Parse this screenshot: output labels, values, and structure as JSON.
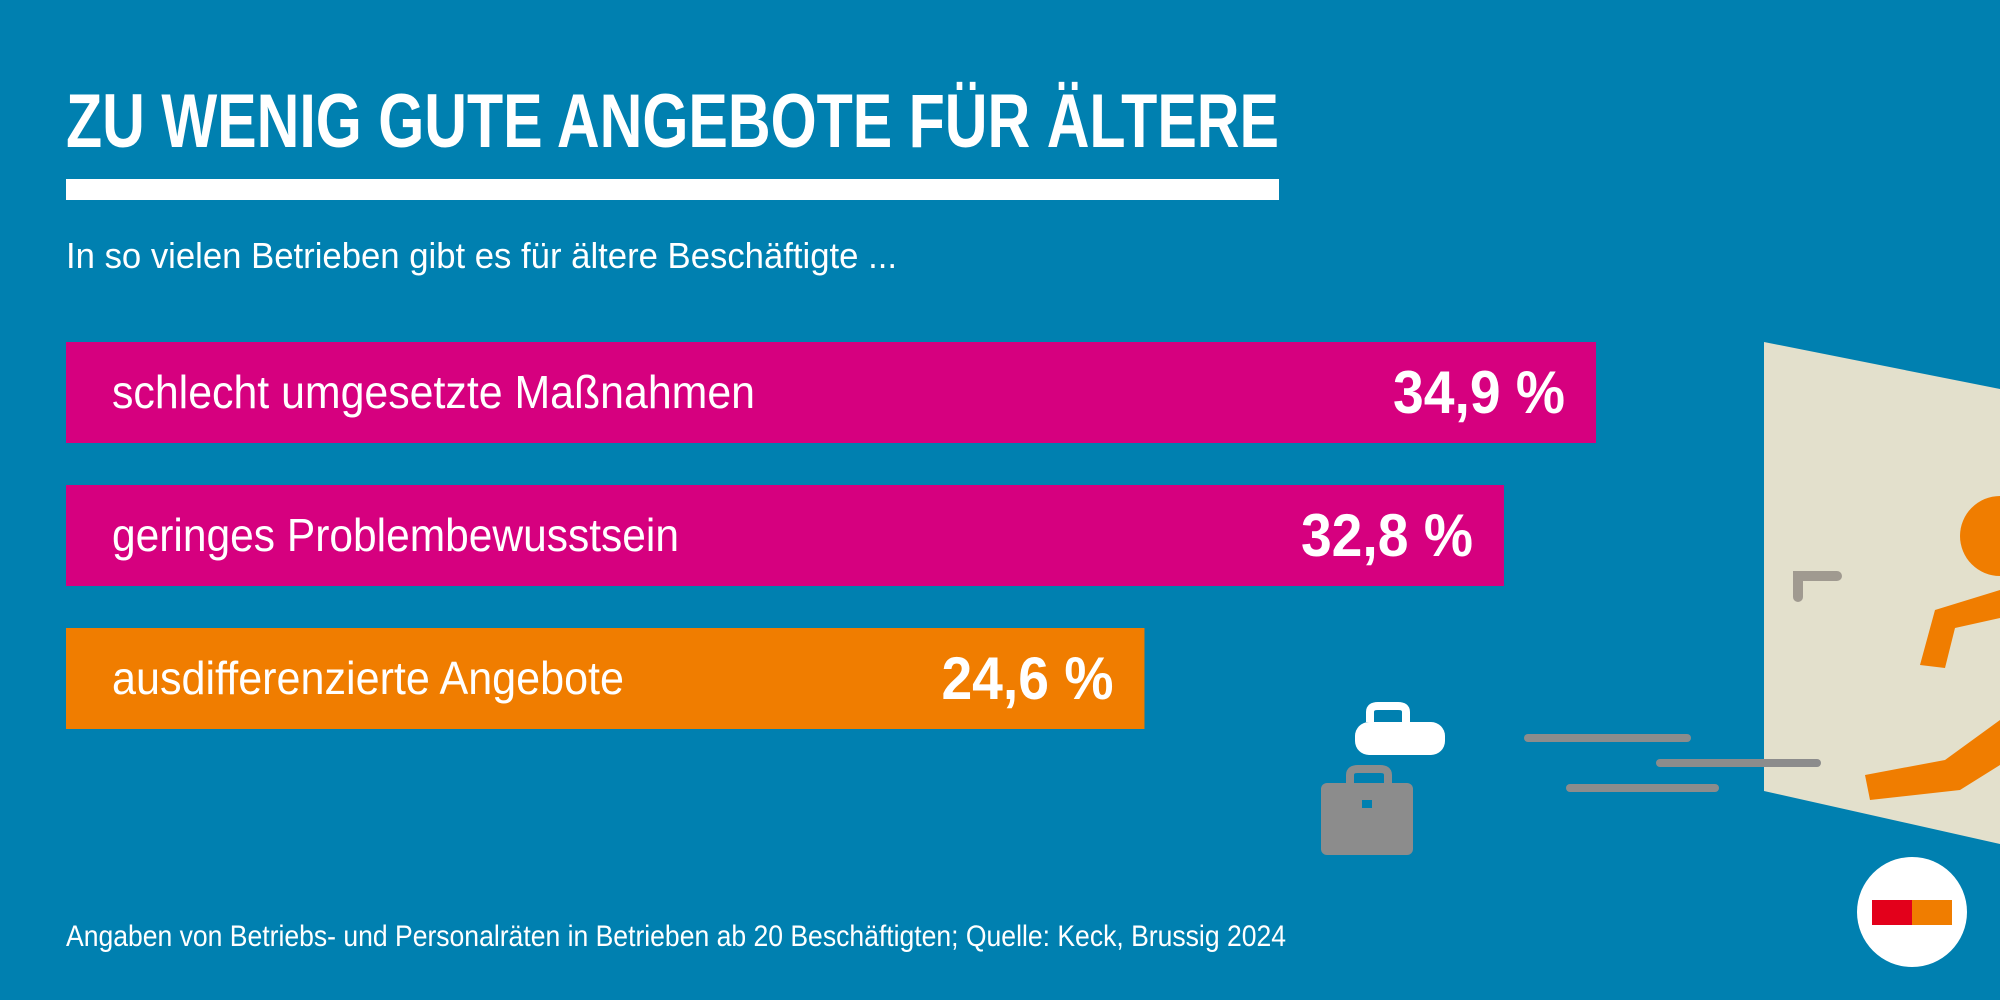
{
  "chart_data": {
    "type": "bar",
    "orientation": "horizontal",
    "title": "ZU WENIG GUTE ANGEBOTE FÜR ÄLTERE",
    "subtitle": "In so vielen Betrieben gibt es für ältere Beschäftigte ...",
    "categories": [
      "schlecht umgesetzte Maßnahmen",
      "geringes Problembewusstsein",
      "ausdifferenzierte Angebote"
    ],
    "values": [
      34.9,
      32.8,
      24.6
    ],
    "value_labels": [
      "34,9 %",
      "32,8 %",
      "24,6 %"
    ],
    "colors": [
      "#d6007f",
      "#d6007f",
      "#f07d00"
    ],
    "source": "Angaben von Betriebs- und Personalräten in Betrieben ab 20 Beschäftigten; Quelle: Keck, Brussig 2024"
  }
}
